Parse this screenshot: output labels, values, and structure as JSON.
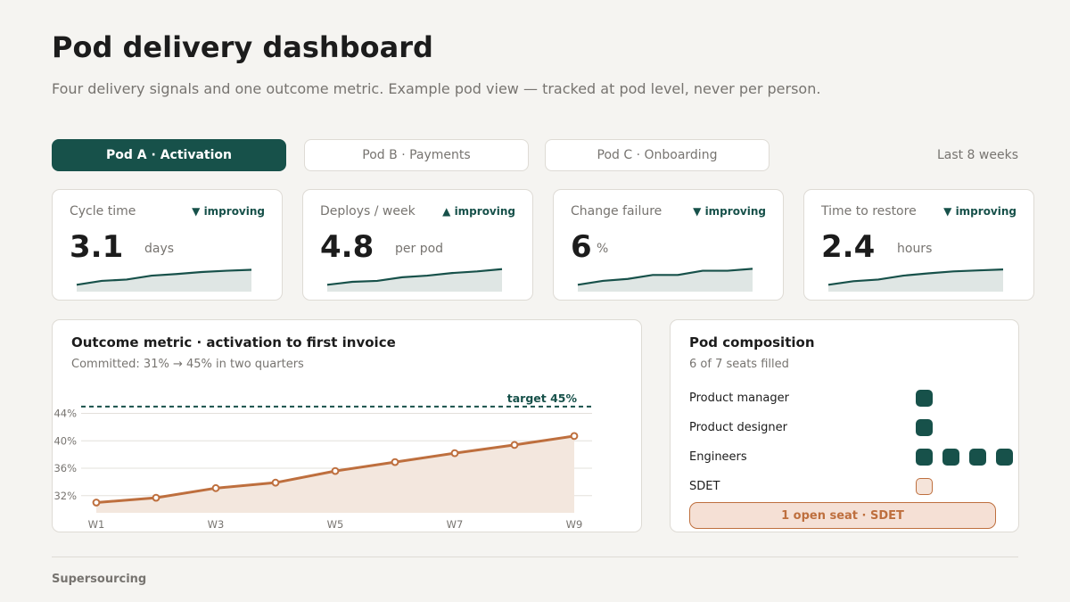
{
  "header": {
    "title": "Pod delivery dashboard",
    "subtitle": "Four delivery signals and one outcome metric. Example pod view — tracked at pod level, never per person."
  },
  "tabs": [
    {
      "label": "Pod A  ·  Activation",
      "active": true
    },
    {
      "label": "Pod B · Payments",
      "active": false
    },
    {
      "label": "Pod C · Onboarding",
      "active": false
    }
  ],
  "range_label": "Last 8 weeks",
  "colors": {
    "accent": "#17514a",
    "outcome": "#be6f3e",
    "muted": "#777470",
    "background": "#f5f4f1"
  },
  "kpis": [
    {
      "label": "Cycle time",
      "trend": "▼ improving",
      "value": "3.1",
      "unit": "days",
      "spark": [
        1,
        2.2,
        2.6,
        3.8,
        4.3,
        4.9,
        5.3,
        5.6
      ]
    },
    {
      "label": "Deploys / week",
      "trend": "▲ improving",
      "value": "4.8",
      "unit": "per pod",
      "spark": [
        1,
        1.9,
        2.2,
        3.3,
        3.8,
        4.6,
        5.1,
        5.8
      ]
    },
    {
      "label": "Change failure",
      "trend": "▼ improving",
      "value": "6",
      "unit": "%",
      "spark": [
        1,
        2.2,
        2.8,
        4.0,
        4.0,
        5.3,
        5.3,
        5.9
      ]
    },
    {
      "label": "Time to restore",
      "trend": "▼ improving",
      "value": "2.4",
      "unit": "hours",
      "spark": [
        1,
        2.1,
        2.6,
        3.8,
        4.5,
        5.1,
        5.4,
        5.7
      ]
    }
  ],
  "outcome": {
    "title": "Outcome metric  ·  activation to first invoice",
    "subtitle": "Committed: 31%  →  45% in two quarters",
    "target_label": "target 45%"
  },
  "chart_data": {
    "type": "area",
    "x": [
      "W1",
      "W2",
      "W3",
      "W4",
      "W5",
      "W6",
      "W7",
      "W8",
      "W9"
    ],
    "x_tick_labels": [
      "W1",
      "W3",
      "W5",
      "W7",
      "W9"
    ],
    "series": [
      {
        "values": [
          31.0,
          31.7,
          33.1,
          33.9,
          35.6,
          36.9,
          38.2,
          39.4,
          40.7
        ]
      }
    ],
    "y_ticks": [
      32,
      36,
      40,
      44
    ],
    "y_tick_labels": [
      "32%",
      "36%",
      "40%",
      "44%"
    ],
    "ylim": [
      29.5,
      45.5
    ],
    "target": 45,
    "target_label": "target 45%",
    "grid": true
  },
  "composition": {
    "title": "Pod composition",
    "subtitle": "6 of 7 seats filled",
    "roles": [
      {
        "label": "Product manager",
        "filled": 1,
        "open": 0
      },
      {
        "label": "Product designer",
        "filled": 1,
        "open": 0
      },
      {
        "label": "Engineers",
        "filled": 4,
        "open": 0
      },
      {
        "label": "SDET",
        "filled": 0,
        "open": 1
      }
    ],
    "open_seat_label": "1 open seat  ·  SDET"
  },
  "footer": {
    "brand": "Supersourcing"
  }
}
